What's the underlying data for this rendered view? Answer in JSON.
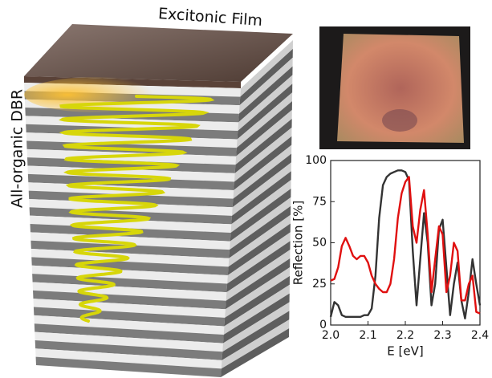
{
  "labels": {
    "film": "Excitonic Film",
    "dbr": "All-organic DBR"
  },
  "chart_data": {
    "type": "line",
    "xlabel": "E [eV]",
    "ylabel": "Reflection [%]",
    "x": [
      2.0,
      2.01,
      2.02,
      2.03,
      2.04,
      2.05,
      2.06,
      2.07,
      2.08,
      2.09,
      2.1,
      2.11,
      2.12,
      2.13,
      2.14,
      2.15,
      2.16,
      2.17,
      2.18,
      2.19,
      2.2,
      2.21,
      2.22,
      2.23,
      2.24,
      2.25,
      2.26,
      2.27,
      2.28,
      2.29,
      2.3,
      2.31,
      2.32,
      2.33,
      2.34,
      2.35,
      2.36,
      2.37,
      2.38,
      2.39,
      2.4
    ],
    "series": [
      {
        "color": "#333333",
        "values": [
          5,
          14,
          12,
          6,
          5,
          5,
          5,
          5,
          5,
          6,
          6,
          10,
          30,
          65,
          85,
          90,
          92,
          93,
          94,
          94,
          93,
          88,
          45,
          12,
          40,
          68,
          50,
          12,
          25,
          58,
          64,
          35,
          6,
          25,
          38,
          15,
          4,
          20,
          40,
          25,
          12
        ]
      },
      {
        "color": "#e01010",
        "values": [
          27,
          28,
          35,
          48,
          53,
          48,
          42,
          40,
          42,
          42,
          38,
          30,
          25,
          22,
          20,
          20,
          25,
          40,
          65,
          80,
          87,
          90,
          60,
          50,
          70,
          82,
          55,
          20,
          40,
          60,
          55,
          20,
          30,
          50,
          45,
          15,
          15,
          25,
          30,
          8,
          7
        ]
      }
    ],
    "xlim": [
      2.0,
      2.4
    ],
    "ylim": [
      0,
      100
    ],
    "xticks": [
      {
        "value": 2.0,
        "label": "2.0"
      },
      2.1,
      2.2,
      2.3,
      2.4
    ],
    "yticks": [
      0,
      25,
      50,
      75,
      100
    ]
  }
}
